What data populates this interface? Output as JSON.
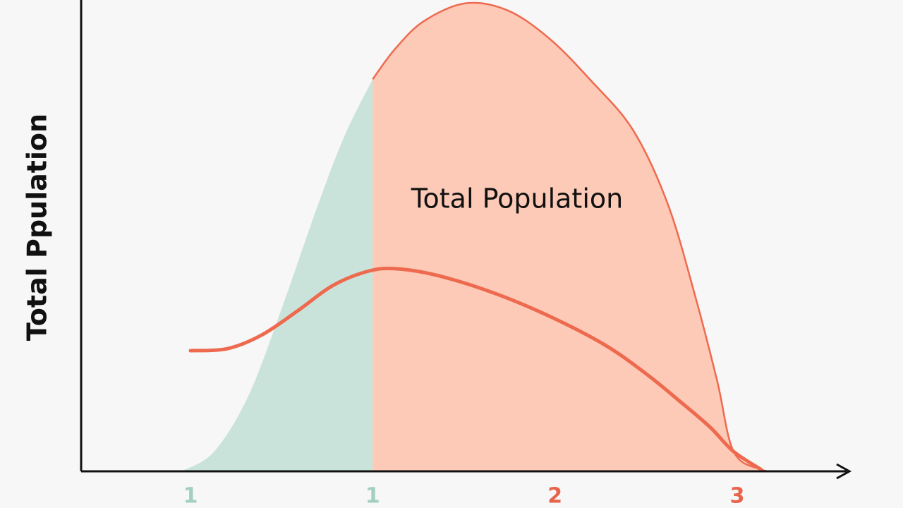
{
  "chart_data": {
    "type": "area",
    "ylabel": "Total Ppulation",
    "annotation": "Total Population",
    "xlim": [
      -0.6,
      3.6
    ],
    "ylim": [
      0,
      100
    ],
    "xticks": [
      {
        "value": 0,
        "label": "1"
      },
      {
        "value": 1,
        "label": "1"
      },
      {
        "value": 2,
        "label": "2"
      },
      {
        "value": 3,
        "label": "3"
      }
    ],
    "xtick_colors": [
      "#a3cfc0",
      "#a3cfc0",
      "#e8634a",
      "#e8634a"
    ],
    "axis_color": "#111111",
    "series": [
      {
        "type": "area",
        "color": "#cae3da",
        "x": [
          -0.05,
          0.13,
          0.32,
          0.51,
          0.7,
          0.85,
          1.0
        ],
        "values": [
          0,
          4.2,
          16.2,
          35.6,
          56.6,
          71.6,
          83.2
        ]
      },
      {
        "type": "area",
        "color": "#fccab6",
        "stroke": "#ee6a4f",
        "x": [
          1.0,
          1.12,
          1.28,
          1.51,
          1.74,
          1.97,
          2.2,
          2.43,
          2.62,
          2.77,
          2.89,
          2.98,
          3.13,
          3.23
        ],
        "values": [
          83.2,
          89.5,
          95.5,
          99.3,
          97.8,
          91.8,
          82.8,
          72.3,
          56.6,
          37.1,
          19.2,
          4.2,
          0.4,
          0
        ]
      },
      {
        "type": "line",
        "color": "#ee6a4f",
        "x": [
          0.0,
          0.2,
          0.39,
          0.59,
          0.78,
          0.97,
          1.12,
          1.35,
          1.66,
          1.97,
          2.27,
          2.5,
          2.69,
          2.85,
          2.98,
          3.13
        ],
        "values": [
          25.6,
          26.0,
          28.9,
          34.1,
          39.4,
          42.4,
          43.0,
          41.6,
          37.9,
          32.9,
          26.9,
          20.7,
          14.7,
          9.4,
          4.2,
          0.4
        ]
      }
    ]
  }
}
